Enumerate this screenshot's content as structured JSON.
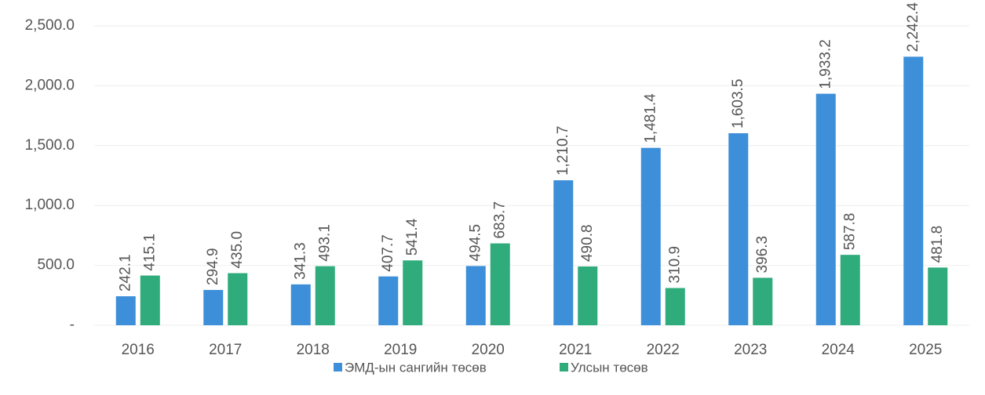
{
  "chart_data": {
    "type": "bar",
    "categories": [
      "2016",
      "2017",
      "2018",
      "2019",
      "2020",
      "2021",
      "2022",
      "2023",
      "2024",
      "2025"
    ],
    "series": [
      {
        "name": "ЭМД-ын сангийн төсөв",
        "color": "#3d8fd9",
        "values": [
          242.1,
          294.9,
          341.3,
          407.7,
          494.5,
          1210.7,
          1481.4,
          1603.5,
          1933.2,
          2242.4
        ],
        "value_labels": [
          "242.1",
          "294.9",
          "341.3",
          "407.7",
          "494.5",
          "1,210.7",
          "1,481.4",
          "1,603.5",
          "1,933.2",
          "2,242.4"
        ]
      },
      {
        "name": "Улсын төсөв",
        "color": "#2fab7c",
        "values": [
          415.1,
          435.0,
          493.1,
          541.4,
          683.7,
          490.8,
          310.9,
          396.3,
          587.8,
          481.8
        ],
        "value_labels": [
          "415.1",
          "435.0",
          "493.1",
          "541.4",
          "683.7",
          "490.8",
          "310.9",
          "396.3",
          "587.8",
          "481.8"
        ]
      }
    ],
    "ylim": [
      0,
      2500
    ],
    "yticks": [
      {
        "value": 0,
        "label": "-"
      },
      {
        "value": 500,
        "label": "500.0"
      },
      {
        "value": 1000,
        "label": "1,000.0"
      },
      {
        "value": 1500,
        "label": "1,500.0"
      },
      {
        "value": 2000,
        "label": "2,000.0"
      },
      {
        "value": 2500,
        "label": "2,500.0"
      }
    ],
    "grid": true,
    "legend": "bottom"
  }
}
